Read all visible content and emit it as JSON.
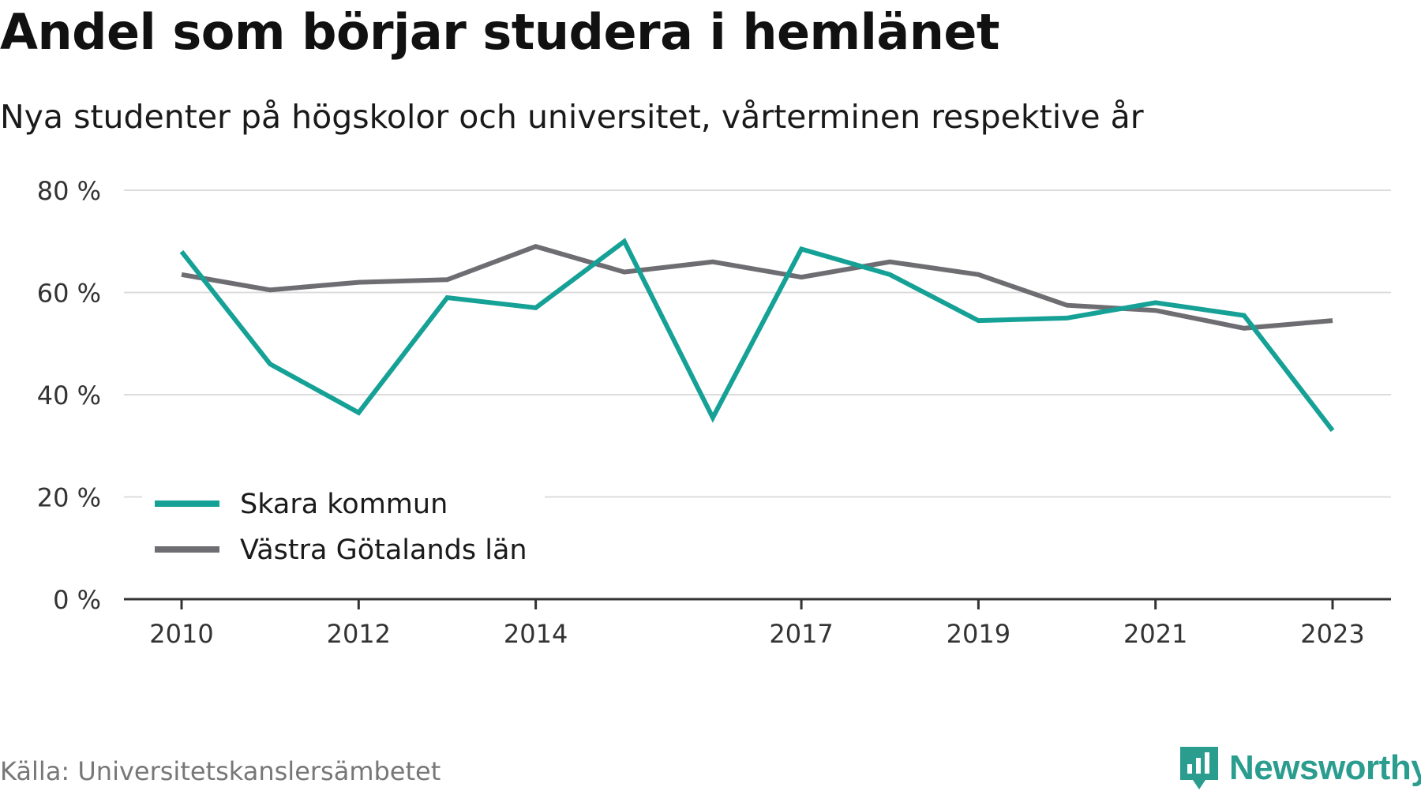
{
  "title": "Andel som börjar studera i hemlänet",
  "subtitle": "Nya studenter på högskolor och universitet, vårterminen respektive år",
  "source": "Källa: Universitetskanslersämbetet",
  "brand": {
    "name": "Newsworthy",
    "icon": "newsworthy-logo-icon",
    "color": "#2a9d8f"
  },
  "chart_data": {
    "type": "line",
    "title": "Andel som börjar studera i hemlänet",
    "subtitle": "Nya studenter på högskolor och universitet, vårterminen respektive år",
    "x": [
      2010,
      2011,
      2012,
      2013,
      2014,
      2015,
      2016,
      2017,
      2018,
      2019,
      2020,
      2021,
      2022,
      2023
    ],
    "x_tick_labels": [
      "2010",
      "2012",
      "2014",
      "2017",
      "2019",
      "2021",
      "2023"
    ],
    "y_tick_labels": [
      "0 %",
      "20 %",
      "40 %",
      "60 %",
      "80 %"
    ],
    "y_ticks": [
      0,
      20,
      40,
      60,
      80
    ],
    "ylim": [
      0,
      80
    ],
    "y_unit": "%",
    "grid": true,
    "legend_position": "bottom-left",
    "series": [
      {
        "name": "Skara kommun",
        "color": "#16a196",
        "values": [
          68,
          46,
          36.5,
          59,
          57,
          70,
          35.5,
          68.5,
          63.5,
          54.5,
          55,
          58,
          55.5,
          33
        ]
      },
      {
        "name": "Västra Götalands län",
        "color": "#6e6d72",
        "values": [
          63.5,
          60.5,
          62,
          62.5,
          69,
          64,
          66,
          63,
          66,
          63.5,
          57.5,
          56.5,
          53,
          54.5
        ]
      }
    ]
  }
}
